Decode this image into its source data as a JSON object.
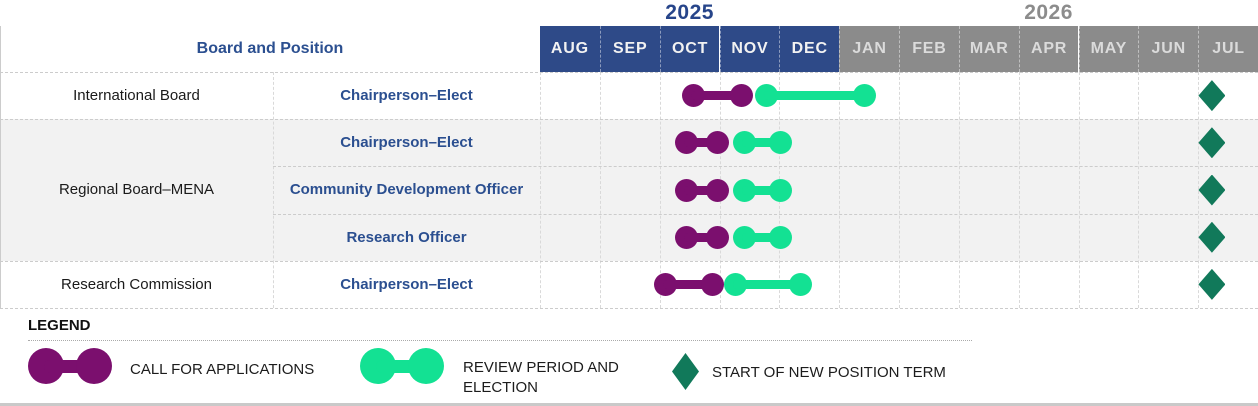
{
  "header": {
    "left_label": "Board and Position"
  },
  "colors": {
    "band_2025_bg": "#2E4A88",
    "band_2026_bg": "#8B8B8B",
    "month_text_2025": "#F2F2F2",
    "month_text_2026": "#DBDBDB",
    "year_2025_text": "#27458A",
    "year_2026_text": "#8C8C8C",
    "position_text": "#2B4F90",
    "board_text": "#1A1A1A",
    "shaded_row_bg": "#F2F2F2",
    "call_for_applications": "#7B0F6E",
    "review_and_election": "#13E193",
    "term_start": "#11795A"
  },
  "chart_data": {
    "type": "gantt",
    "x_unit": "month index, 0 = AUG 2025 start, 12 = end of JUL 2026",
    "x_axis": {
      "months": [
        {
          "label": "AUG",
          "year": "2025"
        },
        {
          "label": "SEP",
          "year": "2025"
        },
        {
          "label": "OCT",
          "year": "2025"
        },
        {
          "label": "NOV",
          "year": "2025"
        },
        {
          "label": "DEC",
          "year": "2025"
        },
        {
          "label": "JAN",
          "year": "2026"
        },
        {
          "label": "FEB",
          "year": "2026"
        },
        {
          "label": "MAR",
          "year": "2026"
        },
        {
          "label": "APR",
          "year": "2026"
        },
        {
          "label": "MAY",
          "year": "2026"
        },
        {
          "label": "JUN",
          "year": "2026"
        },
        {
          "label": "JUL",
          "year": "2026"
        }
      ],
      "year_headers": [
        {
          "label": "2025",
          "month_span": [
            0,
            5
          ]
        },
        {
          "label": "2026",
          "month_span": [
            5,
            12
          ]
        }
      ]
    },
    "board_groups": [
      {
        "label": "International Board",
        "rows": [
          0
        ],
        "shaded": false
      },
      {
        "label": "Regional Board–MENA",
        "rows": [
          1,
          2,
          3
        ],
        "shaded": true
      },
      {
        "label": "Research Commission",
        "rows": [
          4
        ],
        "shaded": false
      }
    ],
    "rows": [
      {
        "board": "International Board",
        "position": "Chairperson–Elect",
        "call_for_applications": [
          2.57,
          3.36
        ],
        "review_and_election": [
          3.78,
          5.43
        ],
        "term_start": 11.23
      },
      {
        "board": "Regional Board–MENA",
        "position": "Chairperson–Elect",
        "call_for_applications": [
          2.45,
          2.97
        ],
        "review_and_election": [
          3.41,
          4.02
        ],
        "term_start": 11.23
      },
      {
        "board": "Regional Board–MENA",
        "position": "Community Development Officer",
        "call_for_applications": [
          2.45,
          2.97
        ],
        "review_and_election": [
          3.41,
          4.02
        ],
        "term_start": 11.23
      },
      {
        "board": "Regional Board–MENA",
        "position": "Research Officer",
        "call_for_applications": [
          2.45,
          2.97
        ],
        "review_and_election": [
          3.41,
          4.02
        ],
        "term_start": 11.23
      },
      {
        "board": "Research Commission",
        "position": "Chairperson–Elect",
        "call_for_applications": [
          2.09,
          2.88
        ],
        "review_and_election": [
          3.27,
          4.36
        ],
        "term_start": 11.23
      }
    ]
  },
  "legend": {
    "title": "LEGEND",
    "items": [
      {
        "type": "dumbbell",
        "color": "#7B0F6E",
        "label": "CALL FOR APPLICATIONS"
      },
      {
        "type": "dumbbell",
        "color": "#13E193",
        "label": "REVIEW PERIOD AND ELECTION"
      },
      {
        "type": "diamond",
        "color": "#11795A",
        "label": "START OF NEW POSITION TERM"
      }
    ]
  }
}
